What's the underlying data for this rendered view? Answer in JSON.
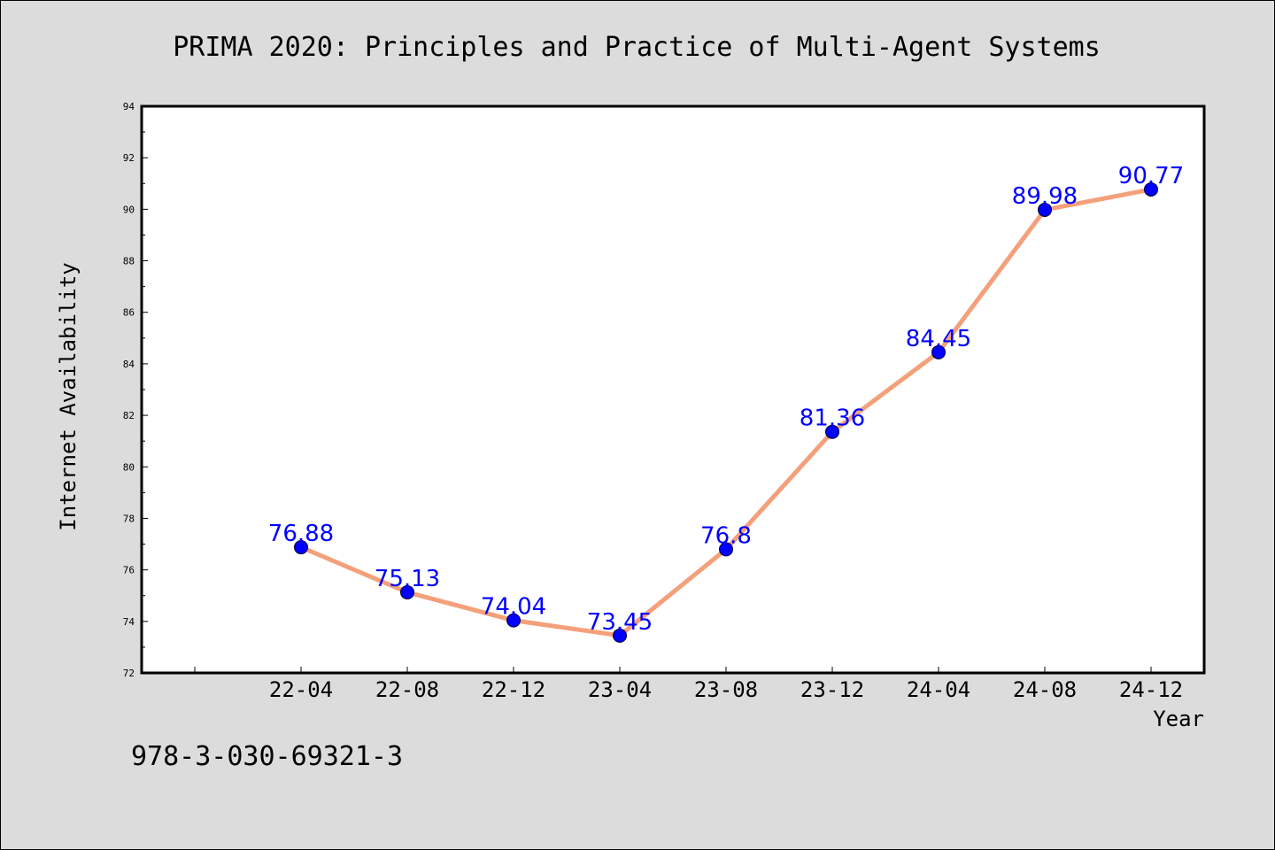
{
  "chart_data": {
    "type": "line",
    "title": "PRIMA 2020: Principles and Practice of Multi-Agent Systems",
    "xlabel": "Year",
    "ylabel": "Internet Availability",
    "categories": [
      "22-04",
      "22-08",
      "22-12",
      "23-04",
      "23-08",
      "23-12",
      "24-04",
      "24-08",
      "24-12"
    ],
    "series": [
      {
        "values": [
          76.88,
          75.13,
          74.04,
          73.45,
          76.8,
          81.36,
          84.45,
          89.98,
          90.77
        ],
        "line_color": "#f4a07a",
        "marker_color": "#0000ff"
      }
    ],
    "ylim": [
      72,
      94
    ],
    "yticks": [
      "72",
      "74",
      "76",
      "78",
      "80",
      "82",
      "84",
      "86",
      "88",
      "90",
      "92",
      "94"
    ],
    "data_labels": [
      "76.88",
      "75.13",
      "74.04",
      "73.45",
      "76.8",
      "81.36",
      "84.45",
      "89.98",
      "90.77"
    ],
    "grid": false,
    "legend": "none"
  },
  "footer_text": "978-3-030-69321-3"
}
